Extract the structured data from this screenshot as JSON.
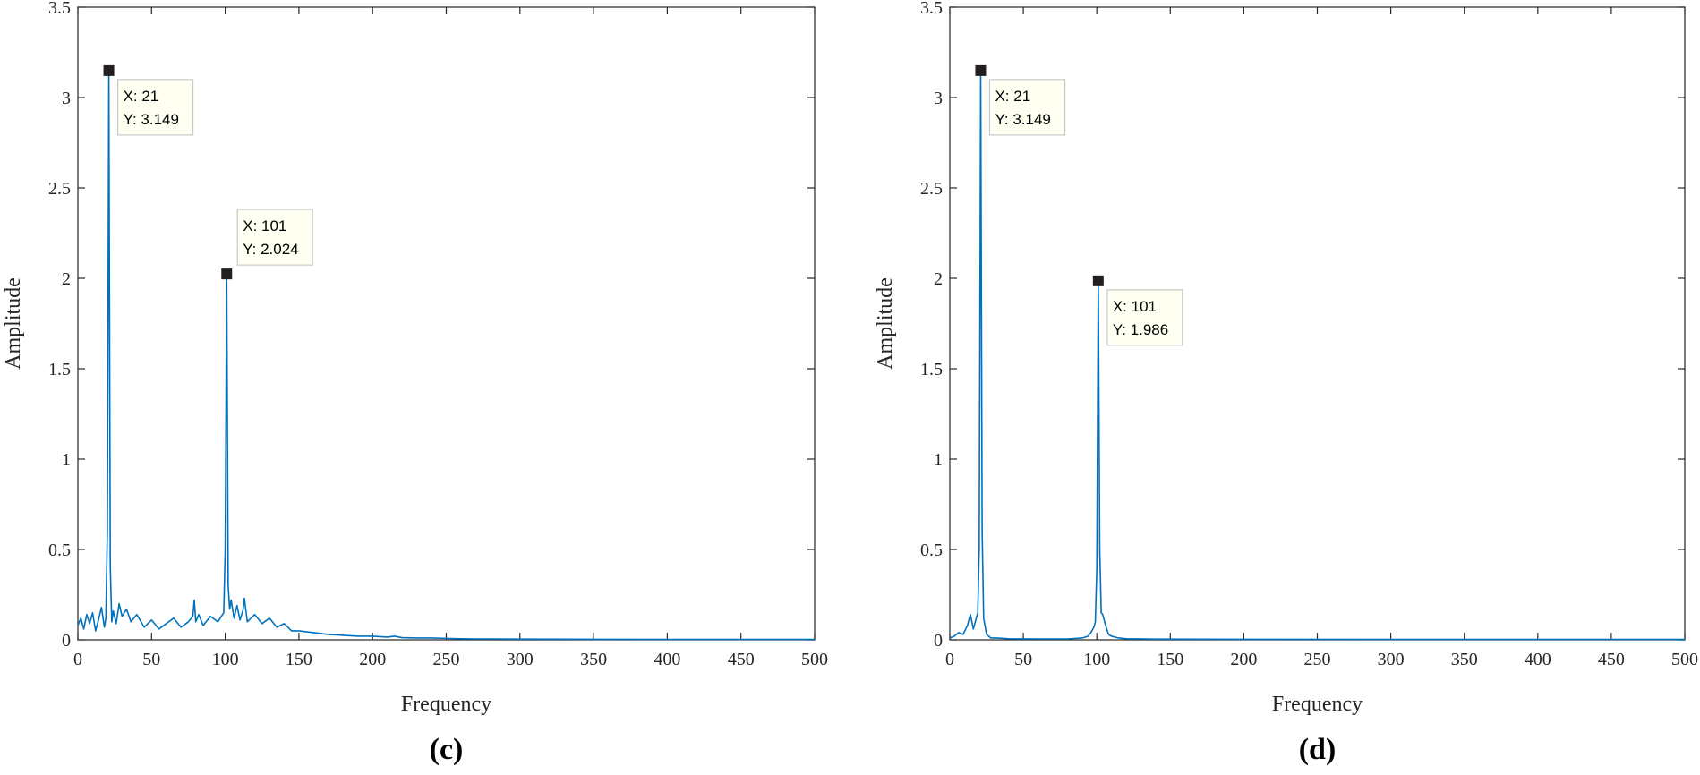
{
  "chart_data": [
    {
      "type": "line",
      "panel_label": "(c)",
      "xlabel": "Frequency",
      "ylabel": "Amplitude",
      "xlim": [
        0,
        500
      ],
      "ylim": [
        0,
        3.5
      ],
      "xticks": [
        0,
        50,
        100,
        150,
        200,
        250,
        300,
        350,
        400,
        450,
        500
      ],
      "yticks": [
        0,
        0.5,
        1,
        1.5,
        2,
        2.5,
        3,
        3.5
      ],
      "grid": false,
      "line_color": "#0072BD",
      "series": [
        {
          "x": [
            0,
            2,
            4,
            6,
            8,
            10,
            12,
            14,
            16,
            18,
            19,
            20,
            21,
            22,
            23,
            24,
            26,
            28,
            30,
            33,
            36,
            40,
            45,
            50,
            55,
            60,
            65,
            70,
            75,
            78,
            79,
            80,
            82,
            85,
            90,
            95,
            99,
            100,
            101,
            102,
            103,
            104,
            106,
            108,
            110,
            112,
            113,
            115,
            120,
            125,
            130,
            135,
            140,
            145,
            150,
            160,
            170,
            180,
            190,
            200,
            210,
            215,
            220,
            230,
            240,
            250,
            260,
            270,
            280,
            300,
            350,
            400,
            450,
            500
          ],
          "y": [
            0.08,
            0.12,
            0.06,
            0.14,
            0.09,
            0.15,
            0.05,
            0.11,
            0.18,
            0.07,
            0.12,
            0.6,
            3.149,
            0.4,
            0.1,
            0.16,
            0.09,
            0.2,
            0.13,
            0.17,
            0.1,
            0.14,
            0.07,
            0.11,
            0.06,
            0.09,
            0.12,
            0.07,
            0.1,
            0.13,
            0.22,
            0.1,
            0.14,
            0.08,
            0.13,
            0.1,
            0.15,
            0.5,
            2.024,
            0.3,
            0.17,
            0.22,
            0.12,
            0.19,
            0.11,
            0.16,
            0.23,
            0.1,
            0.14,
            0.09,
            0.12,
            0.07,
            0.09,
            0.05,
            0.05,
            0.04,
            0.03,
            0.025,
            0.02,
            0.02,
            0.015,
            0.02,
            0.012,
            0.01,
            0.01,
            0.008,
            0.006,
            0.005,
            0.005,
            0.004,
            0.003,
            0.002,
            0.002,
            0.002
          ]
        }
      ],
      "annotations": [
        {
          "x": 21,
          "y": 3.149,
          "line1": "X: 21",
          "line2": "Y: 3.149",
          "placement": "below-right"
        },
        {
          "x": 101,
          "y": 2.024,
          "line1": "X: 101",
          "line2": "Y: 2.024",
          "placement": "above-right"
        }
      ]
    },
    {
      "type": "line",
      "panel_label": "(d)",
      "xlabel": "Frequency",
      "ylabel": "Amplitude",
      "xlim": [
        0,
        500
      ],
      "ylim": [
        0,
        3.5
      ],
      "xticks": [
        0,
        50,
        100,
        150,
        200,
        250,
        300,
        350,
        400,
        450,
        500
      ],
      "yticks": [
        0,
        0.5,
        1,
        1.5,
        2,
        2.5,
        3,
        3.5
      ],
      "grid": false,
      "line_color": "#0072BD",
      "series": [
        {
          "x": [
            0,
            3,
            6,
            9,
            12,
            14,
            16,
            18,
            19,
            20,
            21,
            22,
            23,
            25,
            28,
            32,
            40,
            60,
            80,
            90,
            94,
            96,
            98,
            99,
            100,
            101,
            102,
            103,
            104,
            106,
            108,
            110,
            115,
            120,
            140,
            200,
            300,
            400,
            500
          ],
          "y": [
            0.01,
            0.02,
            0.04,
            0.03,
            0.08,
            0.14,
            0.06,
            0.12,
            0.15,
            0.5,
            3.149,
            0.6,
            0.12,
            0.03,
            0.01,
            0.01,
            0.006,
            0.005,
            0.005,
            0.01,
            0.02,
            0.04,
            0.07,
            0.1,
            0.4,
            1.986,
            0.5,
            0.15,
            0.14,
            0.08,
            0.03,
            0.02,
            0.01,
            0.006,
            0.004,
            0.003,
            0.002,
            0.002,
            0.002
          ]
        }
      ],
      "annotations": [
        {
          "x": 21,
          "y": 3.149,
          "line1": "X: 21",
          "line2": "Y: 3.149",
          "placement": "below-right"
        },
        {
          "x": 101,
          "y": 1.986,
          "line1": "X: 101",
          "line2": "Y: 1.986",
          "placement": "below-right"
        }
      ]
    }
  ]
}
